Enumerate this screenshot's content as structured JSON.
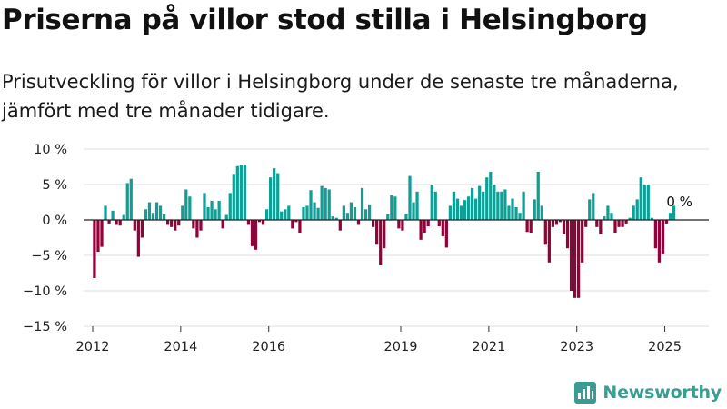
{
  "title": "Priserna på villor stod stilla i Helsingborg",
  "subtitle": "Prisutveckling för villor i Helsingborg under de senaste tre månaderna, jämfört med tre månader tidigare.",
  "brand": {
    "name": "Newsworthy",
    "logo_icon": "newsworthy-logo-icon"
  },
  "chart_data": {
    "type": "bar",
    "title": "Priserna på villor stod stilla i Helsingborg",
    "subtitle": "Prisutveckling för villor i Helsingborg under de senaste tre månaderna, jämfört med tre månader tidigare.",
    "ylim": [
      -15,
      10
    ],
    "y_ticks": [
      10,
      5,
      0,
      -5,
      -10,
      -15
    ],
    "y_tick_labels": [
      "10 %",
      "5 %",
      "0 %",
      "−5 %",
      "−10 %",
      "−15 %"
    ],
    "x_range": [
      "2012-01",
      "2025-12"
    ],
    "x_ticks": [
      "2012",
      "2014",
      "2016",
      "2019",
      "2021",
      "2023",
      "2025"
    ],
    "grid": true,
    "colors": {
      "positive": "#0f9f96",
      "negative": "#93003a",
      "grid": "#dddddd",
      "zero_line": "#222222"
    },
    "annotation": {
      "text": "0 %",
      "x": "2025-04",
      "y": 0
    },
    "x": [
      "2012-01",
      "2012-02",
      "2012-03",
      "2012-04",
      "2012-05",
      "2012-06",
      "2012-07",
      "2012-08",
      "2012-09",
      "2012-10",
      "2012-11",
      "2012-12",
      "2013-01",
      "2013-02",
      "2013-03",
      "2013-04",
      "2013-05",
      "2013-06",
      "2013-07",
      "2013-08",
      "2013-09",
      "2013-10",
      "2013-11",
      "2013-12",
      "2014-01",
      "2014-02",
      "2014-03",
      "2014-04",
      "2014-05",
      "2014-06",
      "2014-07",
      "2014-08",
      "2014-09",
      "2014-10",
      "2014-11",
      "2014-12",
      "2015-01",
      "2015-02",
      "2015-03",
      "2015-04",
      "2015-05",
      "2015-06",
      "2015-07",
      "2015-08",
      "2015-09",
      "2015-10",
      "2015-11",
      "2015-12",
      "2016-01",
      "2016-02",
      "2016-03",
      "2016-04",
      "2016-05",
      "2016-06",
      "2016-07",
      "2016-08",
      "2016-09",
      "2016-10",
      "2016-11",
      "2016-12",
      "2017-01",
      "2017-02",
      "2017-03",
      "2017-04",
      "2017-05",
      "2017-06",
      "2017-07",
      "2017-08",
      "2017-09",
      "2017-10",
      "2017-11",
      "2017-12",
      "2018-01",
      "2018-02",
      "2018-03",
      "2018-04",
      "2018-05",
      "2018-06",
      "2018-07",
      "2018-08",
      "2018-09",
      "2018-10",
      "2018-11",
      "2018-12",
      "2019-01",
      "2019-02",
      "2019-03",
      "2019-04",
      "2019-05",
      "2019-06",
      "2019-07",
      "2019-08",
      "2019-09",
      "2019-10",
      "2019-11",
      "2019-12",
      "2020-01",
      "2020-02",
      "2020-03",
      "2020-04",
      "2020-05",
      "2020-06",
      "2020-07",
      "2020-08",
      "2020-09",
      "2020-10",
      "2020-11",
      "2020-12",
      "2021-01",
      "2021-02",
      "2021-03",
      "2021-04",
      "2021-05",
      "2021-06",
      "2021-07",
      "2021-08",
      "2021-09",
      "2021-10",
      "2021-11",
      "2021-12",
      "2022-01",
      "2022-02",
      "2022-03",
      "2022-04",
      "2022-05",
      "2022-06",
      "2022-07",
      "2022-08",
      "2022-09",
      "2022-10",
      "2022-11",
      "2022-12",
      "2023-01",
      "2023-02",
      "2023-03",
      "2023-04",
      "2023-05",
      "2023-06",
      "2023-07",
      "2023-08",
      "2023-09",
      "2023-10",
      "2023-11",
      "2023-12",
      "2024-01",
      "2024-02",
      "2024-03",
      "2024-04",
      "2024-05",
      "2024-06",
      "2024-07",
      "2024-08",
      "2024-09",
      "2024-10",
      "2024-11",
      "2024-12",
      "2025-01",
      "2025-02",
      "2025-03",
      "2025-04"
    ],
    "values": [
      -8.2,
      -4.5,
      -3.8,
      2.0,
      -0.5,
      1.3,
      -0.7,
      -0.8,
      0.7,
      5.2,
      5.8,
      -1.5,
      -5.2,
      -2.5,
      1.5,
      2.5,
      1.0,
      2.5,
      2.0,
      0.8,
      -0.7,
      -1.0,
      -1.5,
      -0.8,
      2.0,
      4.3,
      3.3,
      -1.2,
      -2.5,
      -1.5,
      3.8,
      1.8,
      2.7,
      1.5,
      2.7,
      -1.2,
      0.7,
      3.8,
      6.5,
      7.6,
      7.8,
      7.8,
      -0.7,
      -3.7,
      -4.2,
      -0.3,
      -0.7,
      1.5,
      6.0,
      7.3,
      6.6,
      1.2,
      1.5,
      2.0,
      -1.2,
      -0.3,
      -1.8,
      1.8,
      2.0,
      4.2,
      2.5,
      1.7,
      4.8,
      4.5,
      4.3,
      0.5,
      0.3,
      -1.5,
      2.0,
      1.0,
      2.5,
      1.8,
      -0.7,
      4.5,
      1.5,
      2.2,
      -1.0,
      -3.5,
      -6.4,
      -4.0,
      0.8,
      3.5,
      3.3,
      -1.2,
      -1.5,
      0.9,
      6.2,
      2.5,
      4.0,
      -2.8,
      -1.8,
      -0.9,
      5.0,
      4.0,
      -0.9,
      -2.3,
      -3.9,
      2.0,
      4.0,
      3.0,
      2.0,
      2.8,
      3.3,
      4.5,
      3.0,
      4.8,
      4.0,
      6.0,
      6.8,
      5.0,
      4.0,
      4.0,
      4.3,
      2.0,
      3.0,
      1.8,
      1.0,
      4.0,
      -1.7,
      -1.8,
      2.9,
      6.8,
      2.0,
      -3.5,
      -6.0,
      -1.0,
      -0.7,
      -0.3,
      -2.0,
      -4.0,
      -10.0,
      -11.0,
      -11.0,
      -6.0,
      -1.0,
      2.9,
      3.8,
      -1.0,
      -2.0,
      0.5,
      2.0,
      1.0,
      -1.8,
      -1.0,
      -1.0,
      -0.5,
      0.3,
      2.0,
      2.9,
      6.0,
      5.0,
      5.0,
      0.3,
      -4.0,
      -6.0,
      -4.8,
      -0.5,
      1.0,
      2.0,
      0.0
    ]
  }
}
